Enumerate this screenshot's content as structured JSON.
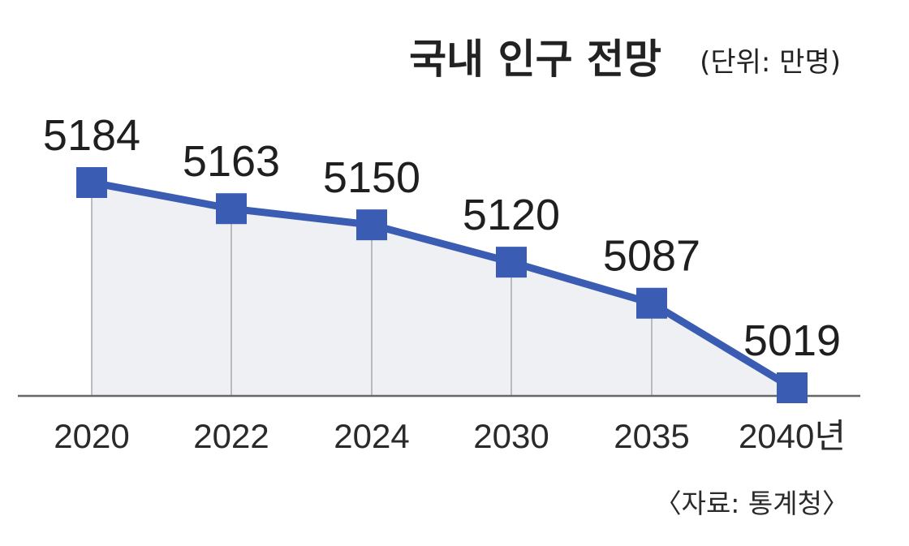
{
  "chart_data": {
    "type": "line",
    "title": "국내 인구 전망",
    "unit_label": "(단위: 만명)",
    "source": "〈자료: 통계청〉",
    "categories": [
      "2020",
      "2022",
      "2024",
      "2030",
      "2035",
      "2040년"
    ],
    "values": [
      5184,
      5163,
      5150,
      5120,
      5087,
      5019
    ],
    "ylim": [
      5019,
      5184
    ],
    "grid": false,
    "area_fill": true,
    "marker": "square"
  },
  "colors": {
    "line": "#3a5db3",
    "marker": "#3a5db3",
    "area": "#eef0f4",
    "axis": "#666666",
    "guide": "#a8a8a8"
  }
}
